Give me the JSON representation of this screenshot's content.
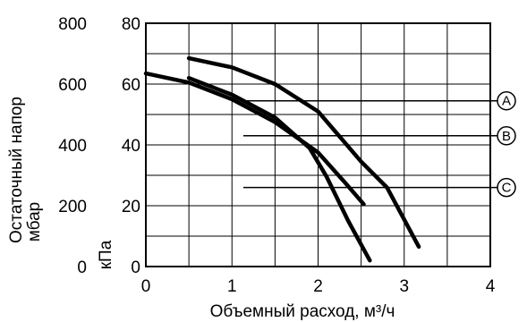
{
  "chart_data": {
    "type": "line",
    "title": "",
    "xlabel": "Объемный расход, м³/ч",
    "ylabel": "Остаточный напор",
    "ylabel_unit_left": "мбар",
    "ylabel_unit_right": "кПа",
    "xlim": [
      0,
      4
    ],
    "ylim_kpa": [
      0,
      80
    ],
    "ylim_mbar": [
      0,
      800
    ],
    "x_ticks": [
      "0",
      "1",
      "2",
      "3",
      "4"
    ],
    "y_ticks_kpa": [
      "0",
      "20",
      "40",
      "60",
      "80"
    ],
    "y_ticks_mbar": [
      "0",
      "200",
      "400",
      "600",
      "800"
    ],
    "grid": true,
    "series": [
      {
        "name": "A",
        "callout_y_kpa": 54.5,
        "points": [
          [
            0.5,
            68.5
          ],
          [
            1.0,
            65.5
          ],
          [
            1.5,
            60.0
          ],
          [
            2.0,
            51.0
          ],
          [
            2.5,
            34.5
          ],
          [
            2.8,
            26.0
          ],
          [
            3.17,
            6.5
          ]
        ]
      },
      {
        "name": "B",
        "callout_y_kpa": 43.0,
        "points": [
          [
            0.0,
            63.5
          ],
          [
            0.5,
            60.5
          ],
          [
            1.0,
            55.0
          ],
          [
            1.5,
            47.5
          ],
          [
            2.0,
            37.5
          ],
          [
            2.3,
            28.0
          ],
          [
            2.53,
            20.5
          ]
        ]
      },
      {
        "name": "C",
        "callout_y_kpa": 26.0,
        "points": [
          [
            0.5,
            62.0
          ],
          [
            1.0,
            56.5
          ],
          [
            1.5,
            49.0
          ],
          [
            1.9,
            39.0
          ],
          [
            2.1,
            29.5
          ],
          [
            2.35,
            15.0
          ],
          [
            2.6,
            2.0
          ]
        ]
      }
    ]
  }
}
